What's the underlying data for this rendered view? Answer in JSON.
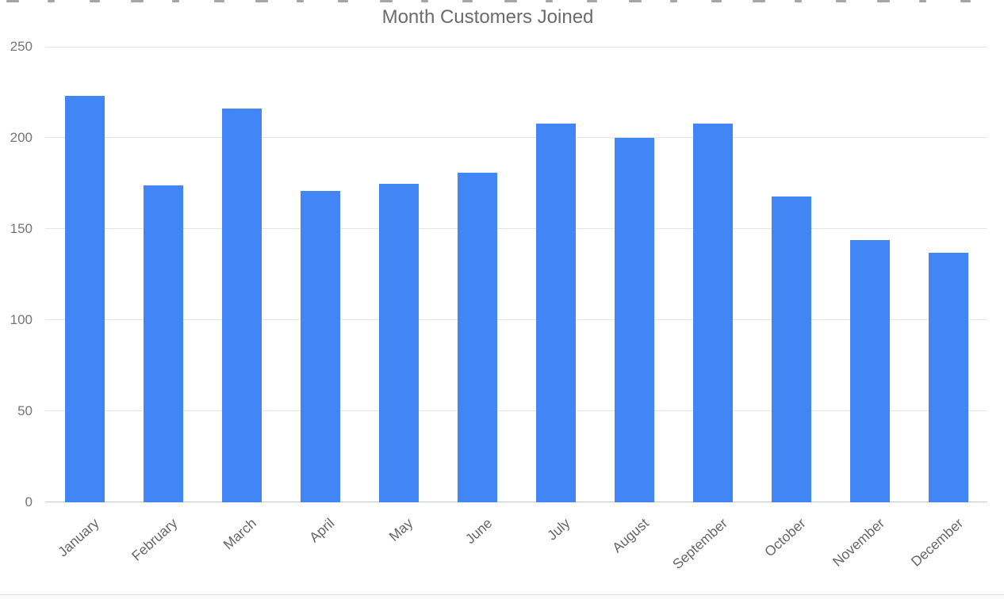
{
  "chart_data": {
    "type": "bar",
    "title": "Month Customers Joined",
    "categories": [
      "January",
      "February",
      "March",
      "April",
      "May",
      "June",
      "July",
      "August",
      "September",
      "October",
      "November",
      "December"
    ],
    "values": [
      223,
      174,
      216,
      171,
      175,
      181,
      208,
      200,
      208,
      168,
      144,
      137
    ],
    "xlabel": "",
    "ylabel": "",
    "ylim": [
      0,
      250
    ],
    "yticks": [
      0,
      50,
      100,
      150,
      200,
      250
    ],
    "grid": true,
    "legend": "none",
    "colors": {
      "bar": "#4285f4",
      "title_text": "#6b6b6b",
      "y_axis_text": "#757575",
      "x_axis_text": "#666666",
      "gridline": "#e6e6e6",
      "baseline": "#c9c9c9"
    }
  }
}
